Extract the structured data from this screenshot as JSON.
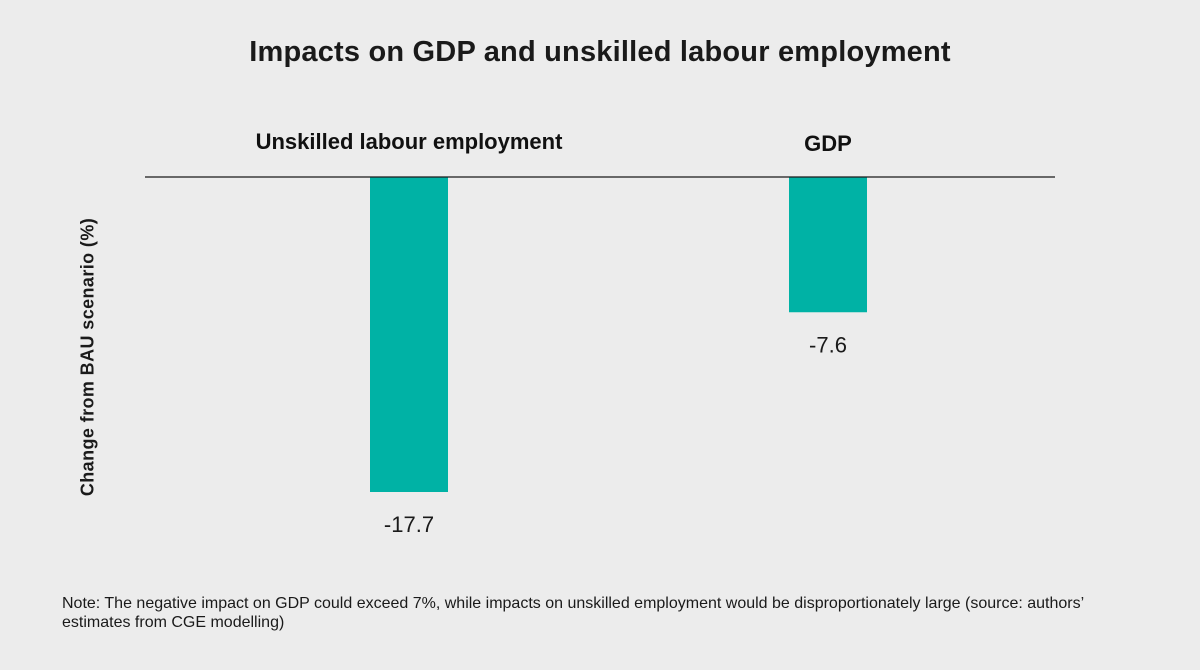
{
  "chart_data": {
    "type": "bar",
    "title": "Impacts on GDP and unskilled labour employment",
    "xlabel": "",
    "ylabel": "Change from BAU scenario (%)",
    "categories": [
      "Unskilled labour employment",
      "GDP"
    ],
    "values": [
      -17.7,
      -7.6
    ],
    "value_labels": [
      "-17.7",
      "-7.6"
    ],
    "ylim": [
      -17.7,
      0
    ],
    "category_labels_position": "top",
    "y_axis_ticks": false,
    "grid": false,
    "legend": "none",
    "bar_color": "#00b2a5",
    "baseline_color": "#1a1a1a"
  },
  "note": "Note: The negative impact on GDP could exceed 7%, while impacts on unskilled employment would be disproportionately large (source: authors’ estimates from CGE modelling)"
}
